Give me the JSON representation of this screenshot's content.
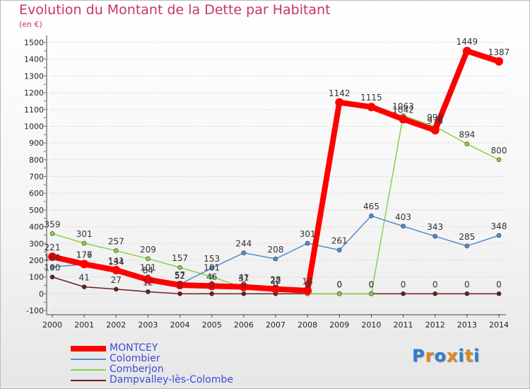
{
  "title": "Evolution du Montant de la Dette par Habitant",
  "subtitle": "(en €)",
  "logo": {
    "text": "Proxiti",
    "letters": [
      "P",
      "r",
      "o",
      "x",
      "i",
      "t",
      "i"
    ],
    "colors": [
      "#2f7fd0",
      "#e08a1e",
      "#2f7fd0",
      "#e08a1e",
      "#2f7fd0",
      "#e08a1e",
      "#2f7fd0"
    ]
  },
  "chart_data": {
    "type": "line",
    "x": [
      "2000",
      "2001",
      "2002",
      "2003",
      "2004",
      "2005",
      "2006",
      "2007",
      "2008",
      "2009",
      "2010",
      "2011",
      "2012",
      "2013",
      "2014"
    ],
    "ylim": [
      -100,
      1500
    ],
    "yticks": [
      "-100",
      "0",
      "100",
      "200",
      "300",
      "400",
      "500",
      "600",
      "700",
      "800",
      "900",
      "1000",
      "1100",
      "1200",
      "1300",
      "1400",
      "1500"
    ],
    "grid": true,
    "legend_position": "bottom-left",
    "series": [
      {
        "name": "Dampvalley-lès-Colombe",
        "color": "#6b1c1c",
        "values": [
          100,
          41,
          27,
          12,
          0,
          0,
          0,
          0,
          0,
          0,
          0,
          0,
          0,
          0,
          0
        ],
        "labels": [
          "100",
          "41",
          "27",
          "12",
          "0",
          "0",
          "0",
          "0",
          "0",
          "0",
          "0",
          "0",
          "0",
          "0",
          "0"
        ]
      },
      {
        "name": "Comberjon",
        "color": "#88d14a",
        "values": [
          359,
          301,
          257,
          209,
          157,
          101,
          37,
          22,
          0,
          0,
          0,
          1063,
          998,
          894,
          800
        ],
        "labels": [
          "359",
          "301",
          "257",
          "209",
          "157",
          "101",
          "37",
          "22",
          "0",
          "0",
          "0",
          "1063",
          "998",
          "894",
          "800"
        ]
      },
      {
        "name": "Colombier",
        "color": "#4d8fd0",
        "values": [
          160,
          176,
          134,
          101,
          57,
          153,
          244,
          208,
          301,
          261,
          465,
          403,
          343,
          285,
          348
        ],
        "labels": [
          "160",
          "176",
          "134",
          "101",
          "57",
          "153",
          "244",
          "208",
          "301",
          "261",
          "465",
          "403",
          "343",
          "285",
          "348"
        ]
      },
      {
        "name": "MONTCEY",
        "color": "#ff0000",
        "values": [
          221,
          177,
          141,
          84,
          52,
          46,
          41,
          28,
          18,
          1142,
          1115,
          1042,
          976,
          1449,
          1387
        ],
        "labels": [
          "221",
          "177",
          "141",
          "84",
          "52",
          "46",
          "41",
          "28",
          "18",
          "1142",
          "1115",
          "1042",
          "976",
          "1449",
          "1387"
        ]
      }
    ]
  },
  "legend": [
    {
      "name": "MONTCEY",
      "color": "#ff0000"
    },
    {
      "name": "Colombier",
      "color": "#4d8fd0"
    },
    {
      "name": "Comberjon",
      "color": "#88d14a"
    },
    {
      "name": "Dampvalley-lès-Colombe",
      "color": "#6b1c1c"
    }
  ]
}
